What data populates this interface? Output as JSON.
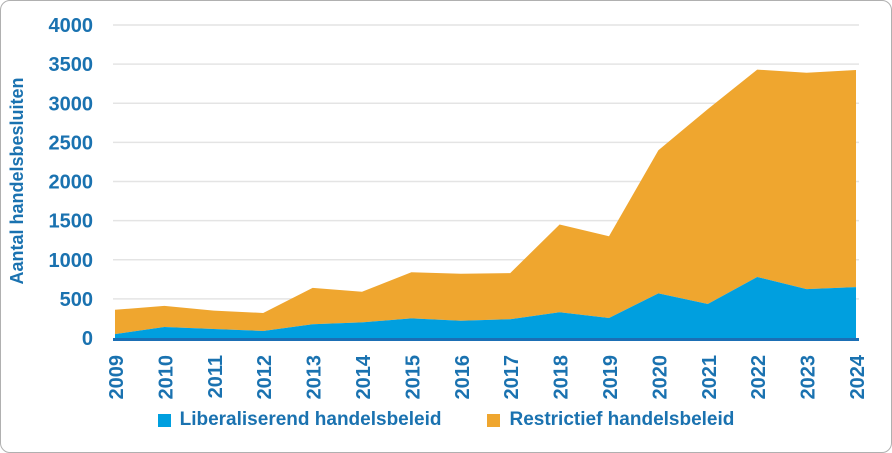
{
  "chart_data": {
    "type": "area",
    "stacked": true,
    "title": "",
    "ylabel": "Aantal handelsbesluiten",
    "xlabel": "",
    "x": [
      "2009",
      "2010",
      "2011",
      "2012",
      "2013",
      "2014",
      "2015",
      "2016",
      "2017",
      "2018",
      "2019",
      "2020",
      "2021",
      "2022",
      "2023",
      "2024"
    ],
    "series": [
      {
        "name": "Liberaliserend handelsbeleid",
        "color": "#009fdf",
        "values": [
          50,
          140,
          115,
          90,
          175,
          200,
          250,
          220,
          240,
          330,
          255,
          570,
          435,
          780,
          625,
          650
        ]
      },
      {
        "name": "Restrictief handelsbeleid",
        "color": "#efa62f",
        "values": [
          310,
          270,
          235,
          230,
          465,
          390,
          590,
          600,
          590,
          1120,
          1045,
          1830,
          2490,
          2650,
          2765,
          2775
        ]
      }
    ],
    "stacked_totals": [
      360,
      410,
      350,
      320,
      640,
      590,
      840,
      820,
      830,
      1450,
      1300,
      2400,
      2925,
      3430,
      3390,
      3425
    ],
    "ylim": [
      0,
      4000
    ],
    "yticks": [
      0,
      500,
      1000,
      1500,
      2000,
      2500,
      3000,
      3500,
      4000
    ],
    "grid": "horizontal",
    "legend_position": "bottom",
    "colors": {
      "text_blue": "#1a72b0",
      "gridline": "#e4e4e4",
      "axis_baseline": "#1b6fb5",
      "card_border": "#b0b0b0",
      "background": "#ffffff"
    }
  }
}
